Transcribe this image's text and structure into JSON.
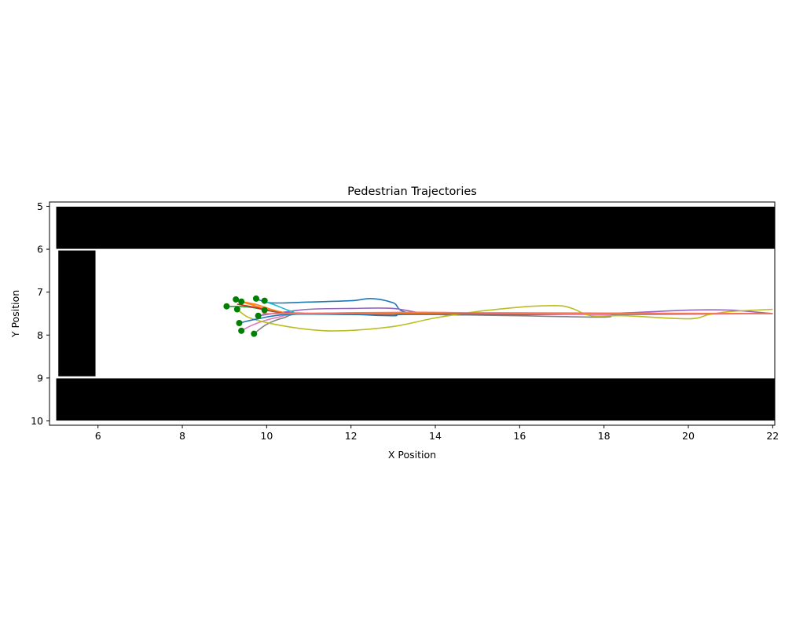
{
  "chart_data": {
    "type": "line",
    "title": "Pedestrian Trajectories",
    "xlabel": "X Position",
    "ylabel": "Y Position",
    "xlim": [
      4.85,
      22.05
    ],
    "ylim": [
      10.1,
      4.9
    ],
    "y_inverted": true,
    "grid": false,
    "xticks": [
      6,
      8,
      10,
      12,
      14,
      16,
      18,
      20,
      22
    ],
    "yticks": [
      5,
      6,
      7,
      8,
      9,
      10
    ],
    "obstacles": [
      {
        "name": "top-wall",
        "x": [
          5.0,
          22.05
        ],
        "y": [
          5.0,
          6.0
        ],
        "color": "#000000"
      },
      {
        "name": "bottom-wall",
        "x": [
          5.0,
          22.05
        ],
        "y": [
          9.0,
          10.0
        ],
        "color": "#000000"
      },
      {
        "name": "left-block",
        "x": [
          5.05,
          5.95
        ],
        "y": [
          6.02,
          8.97
        ],
        "color": "#000000"
      }
    ],
    "start_marker_color": "#008000",
    "series": [
      {
        "color": "#1f77b4",
        "points": [
          [
            9.75,
            7.15
          ],
          [
            10.1,
            7.25
          ],
          [
            11,
            7.23
          ],
          [
            12,
            7.2
          ],
          [
            12.5,
            7.15
          ],
          [
            13,
            7.25
          ],
          [
            13.5,
            7.5
          ],
          [
            16,
            7.5
          ],
          [
            22,
            7.5
          ]
        ]
      },
      {
        "color": "#ff7f0e",
        "points": [
          [
            9.3,
            7.2
          ],
          [
            9.6,
            7.28
          ],
          [
            10,
            7.4
          ],
          [
            10.5,
            7.48
          ],
          [
            13,
            7.5
          ],
          [
            22,
            7.5
          ]
        ]
      },
      {
        "color": "#2ca02c",
        "points": [
          [
            9.05,
            7.33
          ],
          [
            9.6,
            7.35
          ],
          [
            10.2,
            7.45
          ],
          [
            11,
            7.5
          ],
          [
            14,
            7.5
          ],
          [
            22,
            7.5
          ]
        ]
      },
      {
        "color": "#d62728",
        "points": [
          [
            9.3,
            7.28
          ],
          [
            9.7,
            7.35
          ],
          [
            10.2,
            7.45
          ],
          [
            11,
            7.5
          ],
          [
            15,
            7.5
          ],
          [
            22,
            7.5
          ]
        ]
      },
      {
        "color": "#9467bd",
        "points": [
          [
            9.8,
            7.55
          ],
          [
            10.3,
            7.48
          ],
          [
            11,
            7.4
          ],
          [
            12,
            7.38
          ],
          [
            13,
            7.38
          ],
          [
            14,
            7.52
          ],
          [
            16,
            7.52
          ],
          [
            18,
            7.5
          ],
          [
            20,
            7.42
          ],
          [
            21,
            7.42
          ],
          [
            22,
            7.5
          ]
        ]
      },
      {
        "color": "#8c564b",
        "points": [
          [
            9.95,
            7.42
          ],
          [
            10.5,
            7.48
          ],
          [
            12,
            7.52
          ],
          [
            16,
            7.52
          ],
          [
            22,
            7.5
          ]
        ]
      },
      {
        "color": "#e377c2",
        "points": [
          [
            9.4,
            7.9
          ],
          [
            9.7,
            7.75
          ],
          [
            10.2,
            7.6
          ],
          [
            11,
            7.5
          ],
          [
            14,
            7.48
          ],
          [
            18,
            7.52
          ],
          [
            22,
            7.5
          ]
        ]
      },
      {
        "color": "#7f7f7f",
        "points": [
          [
            9.7,
            7.97
          ],
          [
            10,
            7.75
          ],
          [
            10.4,
            7.6
          ],
          [
            11,
            7.5
          ],
          [
            14,
            7.52
          ],
          [
            16,
            7.55
          ],
          [
            18,
            7.58
          ],
          [
            18.5,
            7.52
          ],
          [
            22,
            7.5
          ]
        ]
      },
      {
        "color": "#bcbd22",
        "points": [
          [
            9.3,
            7.4
          ],
          [
            9.6,
            7.6
          ],
          [
            10.2,
            7.75
          ],
          [
            11,
            7.87
          ],
          [
            11.8,
            7.9
          ],
          [
            13,
            7.8
          ],
          [
            14,
            7.6
          ],
          [
            15,
            7.45
          ],
          [
            16,
            7.35
          ],
          [
            16.5,
            7.32
          ],
          [
            17,
            7.32
          ],
          [
            17.3,
            7.4
          ],
          [
            17.7,
            7.55
          ],
          [
            18.5,
            7.55
          ],
          [
            20,
            7.62
          ],
          [
            20.5,
            7.52
          ],
          [
            21,
            7.45
          ],
          [
            22,
            7.4
          ]
        ]
      },
      {
        "color": "#17becf",
        "points": [
          [
            9.95,
            7.22
          ],
          [
            10.2,
            7.3
          ],
          [
            10.6,
            7.45
          ],
          [
            11,
            7.5
          ],
          [
            14,
            7.5
          ],
          [
            22,
            7.5
          ]
        ]
      },
      {
        "color": "#1f77b4",
        "points": [
          [
            9.35,
            7.72
          ],
          [
            9.8,
            7.62
          ],
          [
            10.5,
            7.52
          ],
          [
            12,
            7.52
          ],
          [
            13,
            7.55
          ],
          [
            14,
            7.5
          ],
          [
            22,
            7.5
          ]
        ]
      },
      {
        "color": "#ff7f0e",
        "points": [
          [
            9.4,
            7.22
          ],
          [
            9.8,
            7.3
          ],
          [
            10.3,
            7.45
          ],
          [
            11,
            7.5
          ],
          [
            15,
            7.48
          ],
          [
            22,
            7.5
          ]
        ]
      },
      {
        "color": "#f8766d",
        "points": [
          [
            9.9,
            7.5
          ],
          [
            10.5,
            7.5
          ],
          [
            12,
            7.48
          ],
          [
            14,
            7.47
          ],
          [
            16,
            7.5
          ],
          [
            20,
            7.5
          ],
          [
            22,
            7.5
          ]
        ]
      }
    ],
    "starts": [
      [
        9.27,
        7.17
      ],
      [
        9.75,
        7.15
      ],
      [
        9.95,
        7.2
      ],
      [
        9.05,
        7.33
      ],
      [
        9.3,
        7.4
      ],
      [
        9.4,
        7.22
      ],
      [
        9.8,
        7.55
      ],
      [
        9.95,
        7.42
      ],
      [
        9.35,
        7.72
      ],
      [
        9.4,
        7.9
      ],
      [
        9.7,
        7.97
      ]
    ]
  }
}
